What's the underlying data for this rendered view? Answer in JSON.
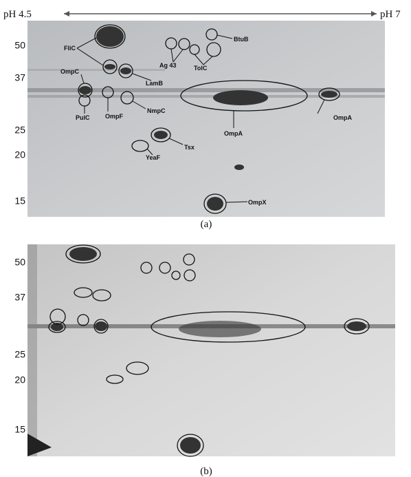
{
  "panel_a": {
    "ph_left": "pH 4.5",
    "ph_right": "pH 7",
    "mw_labels": [
      50,
      37,
      25,
      20,
      15
    ],
    "spot_labels": [
      "FliC",
      "BtuB",
      "Ag 43",
      "TolC",
      "LamB",
      "OmpC",
      "PulC",
      "OmpF",
      "NmpC",
      "OmpA",
      "OmpA",
      "Tsx",
      "YeaF",
      "OmpX"
    ],
    "caption": "(a)"
  },
  "panel_b": {
    "mw_labels": [
      50,
      37,
      25,
      20,
      15
    ],
    "caption": "(b)"
  }
}
